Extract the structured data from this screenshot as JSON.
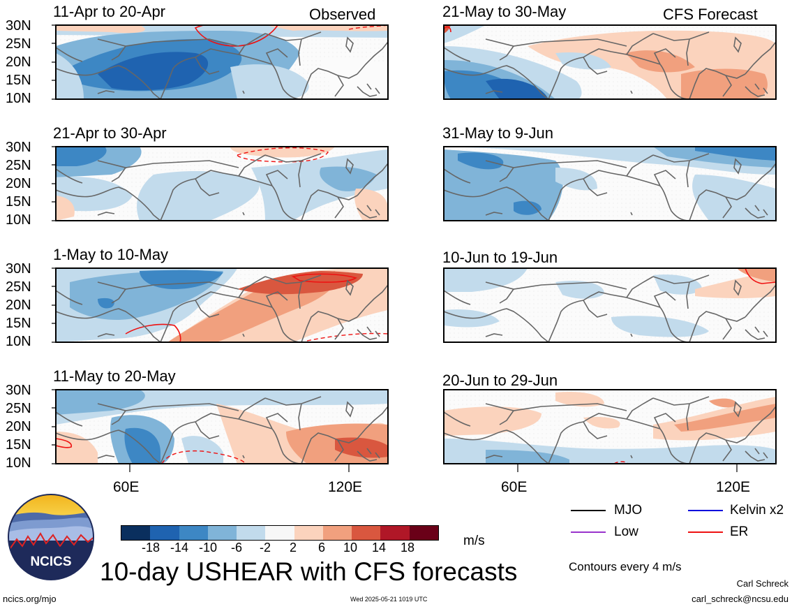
{
  "panels": {
    "left": [
      {
        "title": "11-Apr to 20-Apr",
        "tag": "Observed"
      },
      {
        "title": "21-Apr to 30-Apr",
        "tag": ""
      },
      {
        "title": "1-May to 10-May",
        "tag": ""
      },
      {
        "title": "11-May to 20-May",
        "tag": ""
      }
    ],
    "right": [
      {
        "title": "21-May to 30-May",
        "tag": "CFS Forecast"
      },
      {
        "title": "31-May to 9-Jun",
        "tag": ""
      },
      {
        "title": "10-Jun to 19-Jun",
        "tag": ""
      },
      {
        "title": "20-Jun to 29-Jun",
        "tag": ""
      }
    ]
  },
  "axes": {
    "lat_labels": [
      "30N",
      "25N",
      "20N",
      "15N",
      "10N"
    ],
    "lon_labels": [
      "60E",
      "120E"
    ]
  },
  "colorbar": {
    "ticks": [
      "-18",
      "-14",
      "-10",
      "-6",
      "-2",
      "2",
      "6",
      "10",
      "14",
      "18"
    ],
    "colors": [
      "#0a2f5e",
      "#1f63b0",
      "#3d87c4",
      "#80b4d8",
      "#c2dbec",
      "#f7f7f7",
      "#fbd3bd",
      "#f1a07e",
      "#d9573f",
      "#b01727",
      "#6a0018"
    ],
    "unit": "m/s"
  },
  "legend": {
    "items": [
      {
        "label": "MJO",
        "color": "#000000"
      },
      {
        "label": "Kelvin x2",
        "color": "#0000dd"
      },
      {
        "label": "Low",
        "color": "#9933cc"
      },
      {
        "label": "ER",
        "color": "#ee1111"
      }
    ],
    "contour_note": "Contours every 4 m/s"
  },
  "logo": {
    "text": "NCICS"
  },
  "main_title": "10-day USHEAR with CFS forecasts",
  "footer": {
    "url": "ncics.org/mjo",
    "timestamp": "Wed 2025-05-21 1019 UTC",
    "author": "Carl Schreck",
    "email": "carl_schreck@ncsu.edu"
  }
}
